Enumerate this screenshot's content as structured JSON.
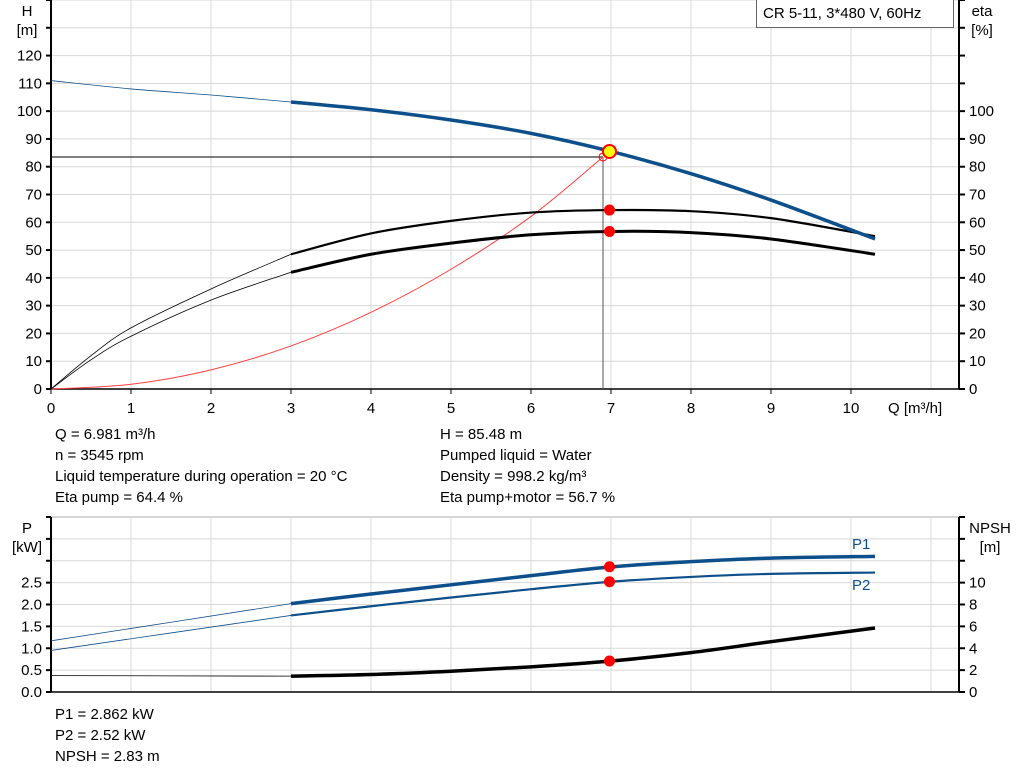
{
  "legend_title": "CR 5-11, 3*480 V, 60Hz",
  "info_left": [
    "Q = 6.981 m³/h",
    "n = 3545 rpm",
    "Liquid temperature during operation = 20 °C",
    "Eta pump = 64.4 %"
  ],
  "info_right": [
    "H = 85.48 m",
    "Pumped liquid = Water",
    "Density = 998.2 kg/m³",
    "Eta pump+motor = 56.7 %"
  ],
  "info_bottom": [
    "P1 = 2.862 kW",
    "P2 = 2.52 kW",
    "NPSH = 2.83 m"
  ],
  "colors": {
    "head": "#0d4f8b",
    "eta": "#000000",
    "system": "#ff4040",
    "duty_point": "#ff0000",
    "duty_fill": "#ffff00",
    "grid": "#d8d8d8"
  },
  "chart_data": [
    {
      "type": "line",
      "xlabel": "Q [m³/h]",
      "ylabel_left": [
        "H",
        "[m]"
      ],
      "ylabel_right": [
        "eta",
        "[%]"
      ],
      "xlim": [
        0,
        11.35
      ],
      "ylim_left": [
        0,
        140
      ],
      "ylim_right": [
        0,
        140
      ],
      "x_ticks": [
        "0",
        "1",
        "2",
        "3",
        "4",
        "5",
        "6",
        "7",
        "8",
        "9",
        "10"
      ],
      "y_ticks_left": [
        "0",
        "10",
        "20",
        "30",
        "40",
        "50",
        "60",
        "70",
        "80",
        "90",
        "100",
        "110",
        "120"
      ],
      "y_ticks_right": [
        "0",
        "10",
        "20",
        "30",
        "40",
        "50",
        "60",
        "70",
        "80",
        "90",
        "100"
      ],
      "grid": true,
      "series": [
        {
          "key": "H",
          "axis": "left",
          "x": [
            0,
            1,
            2,
            3,
            4,
            5,
            6,
            7,
            8,
            9,
            10.3
          ],
          "y": [
            111,
            108,
            105.8,
            103.3,
            100.5,
            96.8,
            92,
            85.5,
            77.5,
            68,
            54
          ]
        },
        {
          "key": "eta_pump",
          "axis": "right",
          "x": [
            0,
            0.5,
            1,
            2,
            3,
            4,
            5,
            6,
            7,
            8,
            9,
            10.3
          ],
          "y": [
            0,
            12,
            22,
            36,
            48.5,
            56,
            60.5,
            63.5,
            64.4,
            64,
            61.5,
            55
          ]
        },
        {
          "key": "eta_total",
          "axis": "right",
          "x": [
            0,
            0.5,
            1,
            2,
            3,
            4,
            5,
            6,
            7,
            8,
            9,
            10.3
          ],
          "y": [
            0,
            10.5,
            19,
            32,
            42,
            48.5,
            52.5,
            55.5,
            56.7,
            56.3,
            54,
            48.5
          ]
        },
        {
          "key": "system",
          "axis": "left",
          "x": [
            0,
            1,
            2,
            3,
            4,
            5,
            6,
            6.9
          ],
          "y": [
            0,
            1.7,
            6.9,
            15.5,
            27.6,
            43.1,
            62.1,
            83.5
          ]
        }
      ],
      "duty_point": {
        "Q": 6.981,
        "H": 85.48,
        "eta_pump": 64.4,
        "eta_total": 56.7
      },
      "requested_point": {
        "Q": 6.9,
        "H": 83.5
      }
    },
    {
      "type": "line",
      "ylabel_left": [
        "P",
        "[kW]"
      ],
      "ylabel_right": [
        "NPSH",
        "[m]"
      ],
      "xlim": [
        0,
        11.35
      ],
      "ylim_left": [
        0,
        4
      ],
      "ylim_right": [
        0,
        16
      ],
      "y_ticks_left": [
        "0.0",
        "0.5",
        "1.0",
        "1.5",
        "2.0",
        "2.5"
      ],
      "y_ticks_right": [
        "0",
        "2",
        "4",
        "6",
        "8",
        "10"
      ],
      "grid": true,
      "series": [
        {
          "name": "P1",
          "axis": "left",
          "x": [
            0,
            3,
            4,
            5,
            6,
            7,
            8,
            9,
            10.3
          ],
          "y": [
            1.17,
            2.02,
            2.24,
            2.45,
            2.66,
            2.86,
            2.98,
            3.06,
            3.1
          ]
        },
        {
          "name": "P2",
          "axis": "left",
          "x": [
            0,
            3,
            4,
            5,
            6,
            7,
            8,
            9,
            10.3
          ],
          "y": [
            0.95,
            1.75,
            1.96,
            2.16,
            2.35,
            2.52,
            2.63,
            2.7,
            2.73
          ]
        },
        {
          "key": "NPSH",
          "axis": "right",
          "x": [
            0,
            3,
            4,
            5,
            6,
            7,
            8,
            9,
            10.3
          ],
          "y": [
            1.5,
            1.45,
            1.6,
            1.9,
            2.3,
            2.83,
            3.6,
            4.6,
            5.85
          ]
        }
      ],
      "duty_point": {
        "P1": 2.862,
        "P2": 2.52,
        "NPSH": 2.83
      }
    }
  ]
}
